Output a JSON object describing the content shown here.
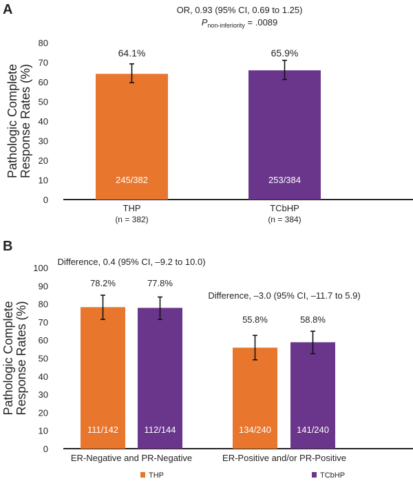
{
  "colors": {
    "THP": "#e8762d",
    "TCbHP": "#6a368b",
    "axis": "#222222",
    "bar_label": "#ffffff"
  },
  "chart_data": [
    {
      "panel": "A",
      "type": "bar",
      "annotation_line1": "OR, 0.93 (95% CI, 0.69 to 1.25)",
      "annotation_p_symbol": "P",
      "annotation_p_subscript": "non-inferiority",
      "annotation_p_value": " = .0089",
      "ylabel_line1": "Pathologic Complete",
      "ylabel_line2": "Response Rates (%)",
      "ylim": [
        0,
        80
      ],
      "yticks": [
        0,
        10,
        20,
        30,
        40,
        50,
        60,
        70,
        80
      ],
      "grid": false,
      "bars": [
        {
          "series": "THP",
          "category": "THP",
          "category_sub": "(n = 382)",
          "value": 64.1,
          "label": "64.1%",
          "count": "245/382",
          "ci": [
            59.6,
            69.2
          ]
        },
        {
          "series": "TCbHP",
          "category": "TCbHP",
          "category_sub": "(n = 384)",
          "value": 65.9,
          "label": "65.9%",
          "count": "253/384",
          "ci": [
            61.2,
            71.0
          ]
        }
      ]
    },
    {
      "panel": "B",
      "type": "bar",
      "ylabel_line1": "Pathologic Complete",
      "ylabel_line2": "Response Rates (%)",
      "ylim": [
        0,
        100
      ],
      "yticks": [
        0,
        10,
        20,
        30,
        40,
        50,
        60,
        70,
        80,
        90,
        100
      ],
      "grid": false,
      "categories": [
        "ER-Negative and PR-Negative",
        "ER-Positive and/or PR-Positive"
      ],
      "group_annotations": [
        "Difference, 0.4 (95% CI, –9.2 to 10.0)",
        "Difference, –3.0 (95% CI, –11.7 to 5.9)"
      ],
      "series": [
        {
          "name": "THP",
          "values": [
            78.2,
            55.8
          ],
          "labels": [
            "78.2%",
            "55.8%"
          ],
          "counts": [
            "111/142",
            "134/240"
          ],
          "ci": [
            [
              71.4,
              84.8
            ],
            [
              49.1,
              62.6
            ]
          ]
        },
        {
          "name": "TCbHP",
          "values": [
            77.8,
            58.8
          ],
          "labels": [
            "77.8%",
            "58.8%"
          ],
          "counts": [
            "112/144",
            "141/240"
          ],
          "ci": [
            [
              71.4,
              83.8
            ],
            [
              52.5,
              64.9
            ]
          ]
        }
      ],
      "legend": {
        "placement": "bottom",
        "entries": [
          "THP",
          "TCbHP"
        ]
      }
    }
  ]
}
